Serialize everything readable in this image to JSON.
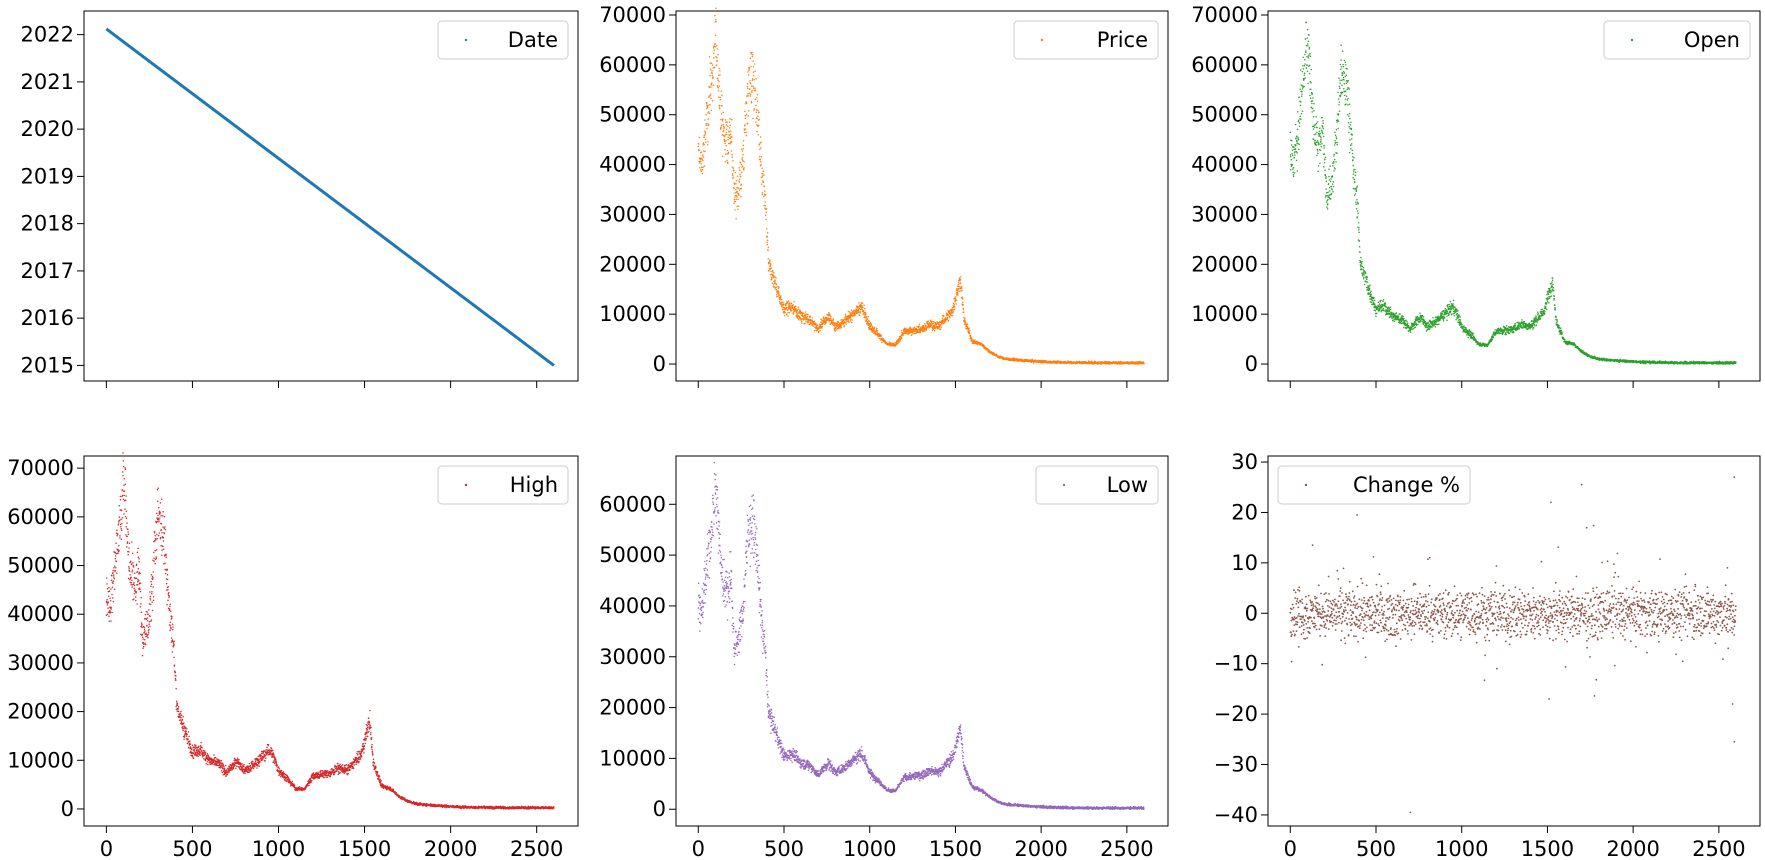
{
  "chart_data": [
    {
      "type": "line",
      "legend": "Date",
      "legend_position": "top-right",
      "color": "#1f77b4",
      "xlim": [
        -130,
        2740
      ],
      "ylim": [
        2014.67,
        2022.5
      ],
      "xticks": [
        0,
        500,
        1000,
        1500,
        2000,
        2500
      ],
      "show_x_tick_labels": false,
      "yticks": [
        2015,
        2016,
        2017,
        2018,
        2019,
        2020,
        2021,
        2022
      ],
      "ytick_labels": [
        "2015",
        "2016",
        "2017",
        "2018",
        "2019",
        "2020",
        "2021",
        "2022"
      ],
      "series": [
        {
          "x": [
            0,
            2600
          ],
          "y": [
            2022.12,
            2015.0
          ]
        }
      ],
      "grid": false
    },
    {
      "type": "scatter",
      "legend": "Price",
      "legend_position": "top-right",
      "color": "#ff7f0e",
      "xlim": [
        -130,
        2740
      ],
      "ylim": [
        -3400,
        70800
      ],
      "xticks": [
        0,
        500,
        1000,
        1500,
        2000,
        2500
      ],
      "show_x_tick_labels": false,
      "yticks": [
        0,
        10000,
        20000,
        30000,
        40000,
        50000,
        60000,
        70000
      ],
      "ytick_labels": [
        "0",
        "10000",
        "20000",
        "30000",
        "40000",
        "50000",
        "60000",
        "70000"
      ],
      "profile": [
        [
          0,
          43000
        ],
        [
          20,
          40000
        ],
        [
          40,
          45000
        ],
        [
          60,
          52000
        ],
        [
          80,
          58000
        ],
        [
          100,
          64000
        ],
        [
          110,
          62000
        ],
        [
          130,
          50000
        ],
        [
          150,
          46000
        ],
        [
          170,
          44000
        ],
        [
          190,
          48000
        ],
        [
          210,
          33000
        ],
        [
          230,
          35000
        ],
        [
          250,
          38000
        ],
        [
          270,
          45000
        ],
        [
          290,
          56000
        ],
        [
          310,
          58000
        ],
        [
          330,
          55000
        ],
        [
          350,
          48000
        ],
        [
          370,
          38000
        ],
        [
          390,
          33000
        ],
        [
          410,
          20000
        ],
        [
          430,
          18000
        ],
        [
          470,
          14000
        ],
        [
          500,
          11000
        ],
        [
          550,
          11500
        ],
        [
          600,
          9500
        ],
        [
          650,
          9000
        ],
        [
          700,
          7000
        ],
        [
          720,
          8000
        ],
        [
          760,
          9500
        ],
        [
          800,
          7500
        ],
        [
          850,
          8500
        ],
        [
          900,
          10000
        ],
        [
          950,
          11500
        ],
        [
          980,
          9500
        ],
        [
          1000,
          7500
        ],
        [
          1050,
          6000
        ],
        [
          1100,
          4000
        ],
        [
          1150,
          3800
        ],
        [
          1200,
          6500
        ],
        [
          1250,
          6800
        ],
        [
          1300,
          7000
        ],
        [
          1350,
          8000
        ],
        [
          1400,
          7500
        ],
        [
          1450,
          9500
        ],
        [
          1480,
          10500
        ],
        [
          1500,
          13000
        ],
        [
          1530,
          17000
        ],
        [
          1550,
          9000
        ],
        [
          1600,
          4500
        ],
        [
          1650,
          4000
        ],
        [
          1700,
          2500
        ],
        [
          1750,
          1500
        ],
        [
          1800,
          1000
        ],
        [
          1900,
          700
        ],
        [
          2000,
          500
        ],
        [
          2100,
          350
        ],
        [
          2300,
          250
        ],
        [
          2600,
          250
        ]
      ],
      "grid": false
    },
    {
      "type": "scatter",
      "legend": "Open",
      "legend_position": "top-right",
      "color": "#2ca02c",
      "xlim": [
        -130,
        2740
      ],
      "ylim": [
        -3400,
        70800
      ],
      "xticks": [
        0,
        500,
        1000,
        1500,
        2000,
        2500
      ],
      "show_x_tick_labels": false,
      "yticks": [
        0,
        10000,
        20000,
        30000,
        40000,
        50000,
        60000,
        70000
      ],
      "ytick_labels": [
        "0",
        "10000",
        "20000",
        "30000",
        "40000",
        "50000",
        "60000",
        "70000"
      ],
      "profile": [
        [
          0,
          43000
        ],
        [
          20,
          40000
        ],
        [
          40,
          45000
        ],
        [
          60,
          52000
        ],
        [
          80,
          58000
        ],
        [
          100,
          64000
        ],
        [
          110,
          62000
        ],
        [
          130,
          50000
        ],
        [
          150,
          46000
        ],
        [
          170,
          44000
        ],
        [
          190,
          48000
        ],
        [
          210,
          33000
        ],
        [
          230,
          35000
        ],
        [
          250,
          38000
        ],
        [
          270,
          45000
        ],
        [
          290,
          56000
        ],
        [
          310,
          58000
        ],
        [
          330,
          55000
        ],
        [
          350,
          48000
        ],
        [
          370,
          38000
        ],
        [
          390,
          33000
        ],
        [
          410,
          20000
        ],
        [
          430,
          18000
        ],
        [
          470,
          14000
        ],
        [
          500,
          11000
        ],
        [
          550,
          11500
        ],
        [
          600,
          9500
        ],
        [
          650,
          9000
        ],
        [
          700,
          7000
        ],
        [
          720,
          8000
        ],
        [
          760,
          9500
        ],
        [
          800,
          7500
        ],
        [
          850,
          8500
        ],
        [
          900,
          10000
        ],
        [
          950,
          11500
        ],
        [
          980,
          9500
        ],
        [
          1000,
          7500
        ],
        [
          1050,
          6000
        ],
        [
          1100,
          4000
        ],
        [
          1150,
          3800
        ],
        [
          1200,
          6500
        ],
        [
          1250,
          6800
        ],
        [
          1300,
          7000
        ],
        [
          1350,
          8000
        ],
        [
          1400,
          7500
        ],
        [
          1450,
          9500
        ],
        [
          1480,
          10500
        ],
        [
          1500,
          13000
        ],
        [
          1530,
          17000
        ],
        [
          1550,
          9000
        ],
        [
          1600,
          4500
        ],
        [
          1650,
          4000
        ],
        [
          1700,
          2500
        ],
        [
          1750,
          1500
        ],
        [
          1800,
          1000
        ],
        [
          1900,
          700
        ],
        [
          2000,
          500
        ],
        [
          2100,
          350
        ],
        [
          2300,
          250
        ],
        [
          2600,
          250
        ]
      ],
      "grid": false
    },
    {
      "type": "scatter",
      "legend": "High",
      "legend_position": "top-right",
      "color": "#d62728",
      "xlim": [
        -130,
        2740
      ],
      "ylim": [
        -3500,
        72500
      ],
      "xticks": [
        0,
        500,
        1000,
        1500,
        2000,
        2500
      ],
      "xtick_labels": [
        "0",
        "500",
        "1000",
        "1500",
        "2000",
        "2500"
      ],
      "show_x_tick_labels": true,
      "yticks": [
        0,
        10000,
        20000,
        30000,
        40000,
        50000,
        60000,
        70000
      ],
      "ytick_labels": [
        "0",
        "10000",
        "20000",
        "30000",
        "40000",
        "50000",
        "60000",
        "70000"
      ],
      "profile": [
        [
          0,
          44500
        ],
        [
          20,
          41000
        ],
        [
          40,
          46500
        ],
        [
          60,
          53500
        ],
        [
          80,
          60000
        ],
        [
          100,
          66000
        ],
        [
          110,
          64000
        ],
        [
          130,
          51500
        ],
        [
          150,
          47500
        ],
        [
          170,
          45500
        ],
        [
          190,
          49500
        ],
        [
          210,
          34500
        ],
        [
          230,
          36500
        ],
        [
          250,
          39500
        ],
        [
          270,
          46500
        ],
        [
          290,
          58000
        ],
        [
          310,
          60000
        ],
        [
          330,
          57000
        ],
        [
          350,
          49500
        ],
        [
          370,
          39500
        ],
        [
          390,
          34500
        ],
        [
          410,
          21000
        ],
        [
          430,
          18800
        ],
        [
          470,
          14600
        ],
        [
          500,
          11600
        ],
        [
          550,
          12000
        ],
        [
          600,
          10000
        ],
        [
          650,
          9400
        ],
        [
          700,
          7400
        ],
        [
          720,
          8400
        ],
        [
          760,
          10000
        ],
        [
          800,
          7900
        ],
        [
          850,
          8900
        ],
        [
          900,
          10500
        ],
        [
          950,
          12200
        ],
        [
          980,
          10000
        ],
        [
          1000,
          7900
        ],
        [
          1050,
          6300
        ],
        [
          1100,
          4200
        ],
        [
          1150,
          4000
        ],
        [
          1200,
          6800
        ],
        [
          1250,
          7100
        ],
        [
          1300,
          7300
        ],
        [
          1350,
          8400
        ],
        [
          1400,
          7900
        ],
        [
          1450,
          10000
        ],
        [
          1480,
          11000
        ],
        [
          1500,
          14000
        ],
        [
          1530,
          18500
        ],
        [
          1550,
          9500
        ],
        [
          1600,
          4700
        ],
        [
          1650,
          4200
        ],
        [
          1700,
          2600
        ],
        [
          1750,
          1600
        ],
        [
          1800,
          1050
        ],
        [
          1900,
          730
        ],
        [
          2000,
          520
        ],
        [
          2100,
          360
        ],
        [
          2300,
          260
        ],
        [
          2600,
          260
        ]
      ],
      "grid": false
    },
    {
      "type": "scatter",
      "legend": "Low",
      "legend_position": "top-right",
      "color": "#9467bd",
      "xlim": [
        -130,
        2740
      ],
      "ylim": [
        -3300,
        69500
      ],
      "xticks": [
        0,
        500,
        1000,
        1500,
        2000,
        2500
      ],
      "xtick_labels": [
        "0",
        "500",
        "1000",
        "1500",
        "2000",
        "2500"
      ],
      "show_x_tick_labels": true,
      "yticks": [
        0,
        10000,
        20000,
        30000,
        40000,
        50000,
        60000
      ],
      "ytick_labels": [
        "0",
        "10000",
        "20000",
        "30000",
        "40000",
        "50000",
        "60000"
      ],
      "profile": [
        [
          0,
          41500
        ],
        [
          20,
          38500
        ],
        [
          40,
          43500
        ],
        [
          60,
          50500
        ],
        [
          80,
          56000
        ],
        [
          100,
          62500
        ],
        [
          110,
          60000
        ],
        [
          130,
          48500
        ],
        [
          150,
          44500
        ],
        [
          170,
          42500
        ],
        [
          190,
          46500
        ],
        [
          210,
          31500
        ],
        [
          230,
          33500
        ],
        [
          250,
          36500
        ],
        [
          270,
          43500
        ],
        [
          290,
          54500
        ],
        [
          310,
          56500
        ],
        [
          330,
          53500
        ],
        [
          350,
          46500
        ],
        [
          370,
          36500
        ],
        [
          390,
          31500
        ],
        [
          410,
          19000
        ],
        [
          430,
          17200
        ],
        [
          470,
          13400
        ],
        [
          500,
          10500
        ],
        [
          550,
          11000
        ],
        [
          600,
          9100
        ],
        [
          650,
          8600
        ],
        [
          700,
          6700
        ],
        [
          720,
          7600
        ],
        [
          760,
          9100
        ],
        [
          800,
          7200
        ],
        [
          850,
          8100
        ],
        [
          900,
          9600
        ],
        [
          950,
          11000
        ],
        [
          980,
          9100
        ],
        [
          1000,
          7200
        ],
        [
          1050,
          5700
        ],
        [
          1100,
          3800
        ],
        [
          1150,
          3600
        ],
        [
          1200,
          6200
        ],
        [
          1250,
          6500
        ],
        [
          1300,
          6700
        ],
        [
          1350,
          7600
        ],
        [
          1400,
          7200
        ],
        [
          1450,
          9100
        ],
        [
          1480,
          10000
        ],
        [
          1500,
          12300
        ],
        [
          1530,
          16000
        ],
        [
          1550,
          8600
        ],
        [
          1600,
          4300
        ],
        [
          1650,
          3800
        ],
        [
          1700,
          2400
        ],
        [
          1750,
          1450
        ],
        [
          1800,
          950
        ],
        [
          1900,
          670
        ],
        [
          2000,
          480
        ],
        [
          2100,
          340
        ],
        [
          2300,
          240
        ],
        [
          2600,
          240
        ]
      ],
      "grid": false
    },
    {
      "type": "scatter",
      "legend": "Change %",
      "legend_position": "top-left",
      "color": "#8c564b",
      "xlim": [
        -130,
        2740
      ],
      "ylim": [
        -42.2,
        31.2
      ],
      "xticks": [
        0,
        500,
        1000,
        1500,
        2000,
        2500
      ],
      "xtick_labels": [
        "0",
        "500",
        "1000",
        "1500",
        "2000",
        "2500"
      ],
      "show_x_tick_labels": true,
      "yticks": [
        -40,
        -30,
        -20,
        -10,
        0,
        10,
        20,
        30
      ],
      "ytick_labels": [
        "−40",
        "−30",
        "−20",
        "−10",
        "0",
        "10",
        "20",
        "30"
      ],
      "profile": [
        [
          0,
          0
        ],
        [
          2600,
          0
        ]
      ],
      "outliers": [
        [
          700,
          -39.5
        ],
        [
          2590,
          27
        ],
        [
          2590,
          -25.5
        ],
        [
          1520,
          22
        ],
        [
          1700,
          25.5
        ],
        [
          390,
          19.5
        ],
        [
          2580,
          -18
        ],
        [
          1510,
          -17
        ],
        [
          130,
          13.5
        ],
        [
          2550,
          9
        ]
      ],
      "grid": false
    }
  ]
}
